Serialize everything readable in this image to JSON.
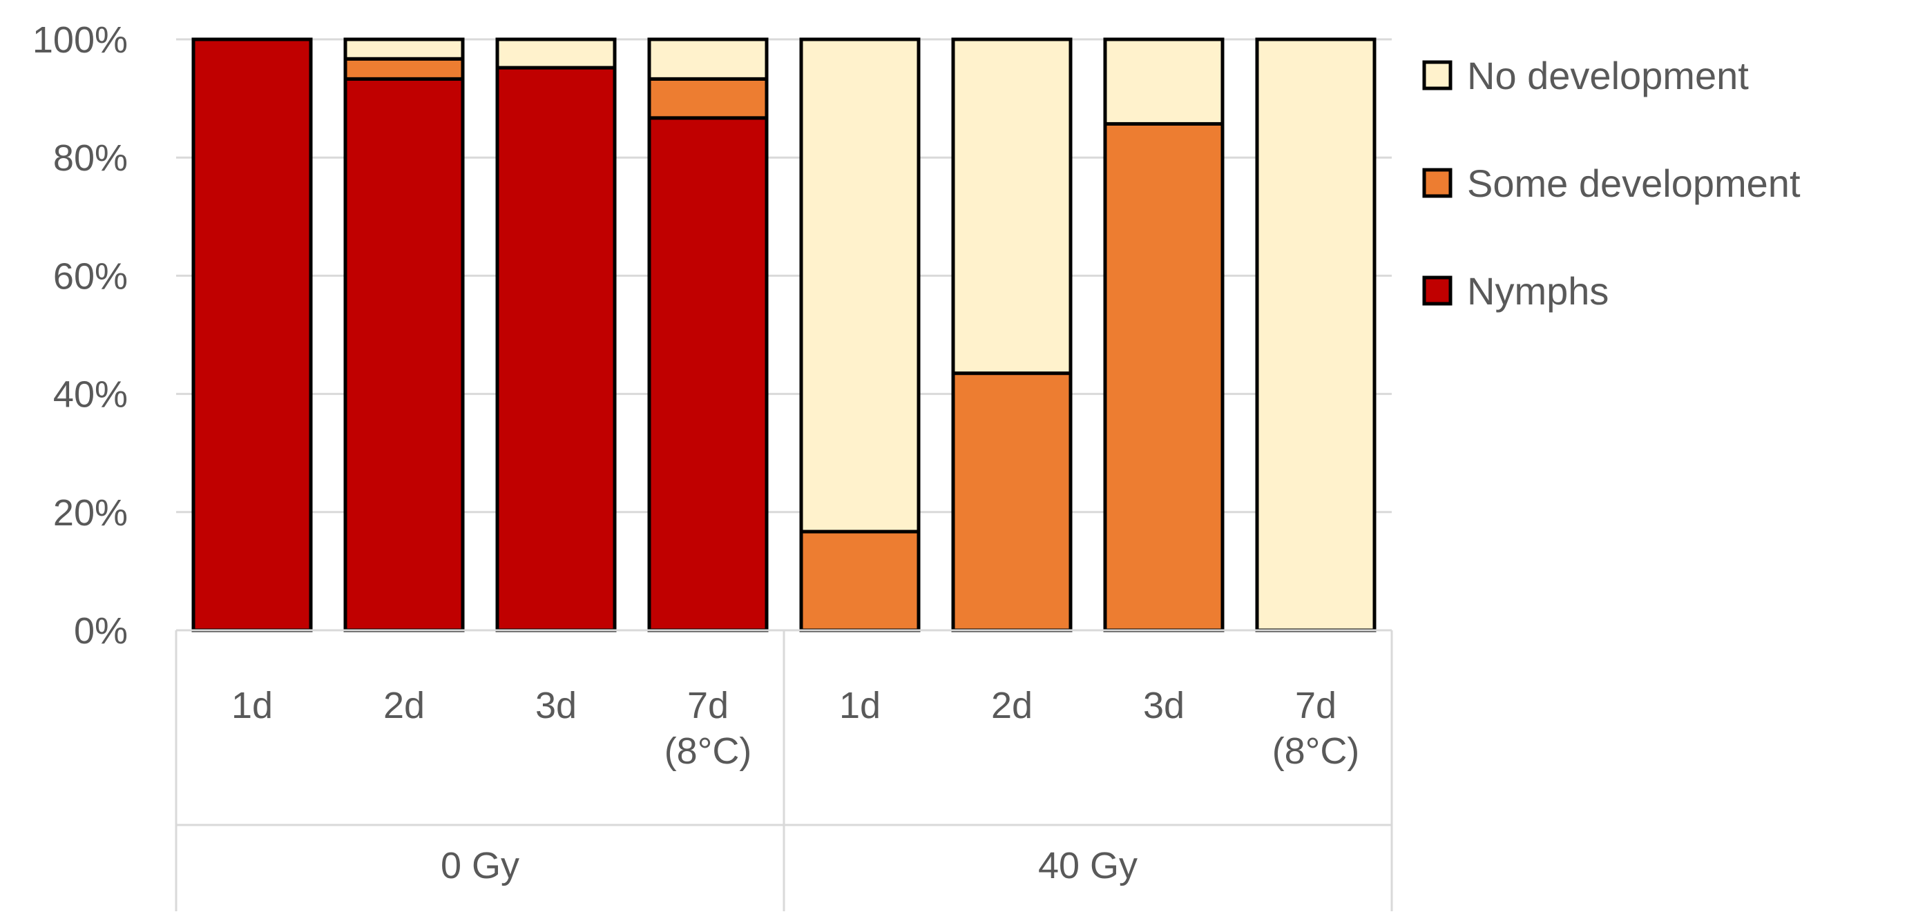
{
  "chart_data": {
    "type": "bar",
    "stacked": true,
    "orientation": "vertical",
    "categories": [
      "1d",
      "2d",
      "3d",
      "7d\n(8°C)",
      "1d",
      "2d",
      "3d",
      "7d\n(8°C)"
    ],
    "groups": [
      {
        "label": "0 Gy",
        "category_indices": [
          0,
          1,
          2,
          3
        ]
      },
      {
        "label": "40 Gy",
        "category_indices": [
          4,
          5,
          6,
          7
        ]
      }
    ],
    "series": [
      {
        "name": "Nymphs",
        "color": "#c00000",
        "values": [
          100,
          93.3,
          95.2,
          86.7,
          0,
          0,
          0,
          0
        ]
      },
      {
        "name": "Some development",
        "color": "#ed7d31",
        "values": [
          0,
          3.4,
          0,
          6.6,
          16.7,
          43.5,
          85.7,
          0
        ]
      },
      {
        "name": "No development",
        "color": "#fff2cc",
        "values": [
          0,
          3.3,
          4.8,
          6.7,
          83.3,
          56.5,
          14.3,
          100
        ]
      }
    ],
    "ylim": [
      0,
      100
    ],
    "yticks": [
      0,
      20,
      40,
      60,
      80,
      100
    ],
    "ytick_labels": [
      "0%",
      "20%",
      "40%",
      "60%",
      "80%",
      "100%"
    ],
    "grid": true,
    "legend_position": "right",
    "legend_order": [
      "No development",
      "Some development",
      "Nymphs"
    ],
    "title": "",
    "xlabel": "",
    "ylabel": ""
  }
}
